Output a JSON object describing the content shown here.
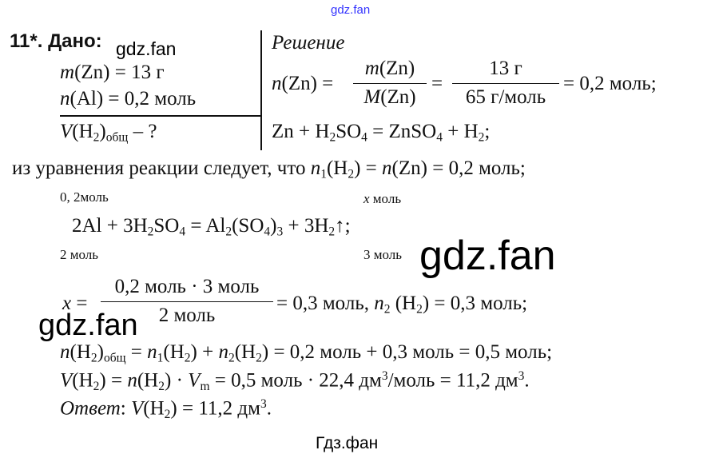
{
  "watermarks": {
    "top": "gdz.fan",
    "near_given": "gdz.fan",
    "middle": "gdz.fan",
    "left": "gdz.fan",
    "bottom": "Гдз.фан"
  },
  "colors": {
    "top_watermark": "#3333ff",
    "text": "#111111"
  },
  "problem": {
    "number": "11*.",
    "given_label": "Дано:",
    "solution_label": "Решение",
    "given": [
      [
        {
          "t": "m",
          "s": "i"
        },
        {
          "t": "(Zn) = 13 г"
        }
      ],
      [
        {
          "t": "n",
          "s": "i"
        },
        {
          "t": "(Al) = 0,2 моль"
        }
      ]
    ],
    "find": [
      {
        "t": "V",
        "s": "i"
      },
      {
        "t": "(H"
      },
      {
        "t": "2",
        "s": "sub"
      },
      {
        "t": ")"
      },
      {
        "t": "общ",
        "s": "sub"
      },
      {
        "t": " – ?"
      }
    ],
    "nzn_lhs": [
      {
        "t": "n",
        "s": "i"
      },
      {
        "t": "(Zn) ="
      }
    ],
    "nzn_frac1": {
      "num": [
        {
          "t": "m",
          "s": "i"
        },
        {
          "t": "(Zn)"
        }
      ],
      "den": [
        {
          "t": "M",
          "s": "i"
        },
        {
          "t": "(Zn)"
        }
      ]
    },
    "nzn_eq": "=",
    "nzn_frac2": {
      "num": [
        {
          "t": "13 г"
        }
      ],
      "den": [
        {
          "t": "65 г/моль"
        }
      ]
    },
    "nzn_result": "= 0,2 моль;",
    "reaction1": [
      {
        "t": "Zn + H"
      },
      {
        "t": "2",
        "s": "sub"
      },
      {
        "t": "SO"
      },
      {
        "t": "4",
        "s": "sub"
      },
      {
        "t": " = ZnSO"
      },
      {
        "t": "4",
        "s": "sub"
      },
      {
        "t": " + H"
      },
      {
        "t": "2",
        "s": "sub"
      },
      {
        "t": ";"
      }
    ],
    "from_equation": [
      {
        "t": "из уравнения реакции следует, что "
      },
      {
        "t": "n",
        "s": "i"
      },
      {
        "t": "1",
        "s": "sub"
      },
      {
        "t": "(H"
      },
      {
        "t": "2",
        "s": "sub"
      },
      {
        "t": ") = "
      },
      {
        "t": "n",
        "s": "i"
      },
      {
        "t": "(Zn) = 0,2 моль;"
      }
    ],
    "above_al": [
      {
        "t": "0, 2моль"
      }
    ],
    "above_h2": [
      {
        "t": "x",
        "s": "i"
      },
      {
        "t": " моль"
      }
    ],
    "reaction2": [
      {
        "t": "2Al + 3H"
      },
      {
        "t": "2",
        "s": "sub"
      },
      {
        "t": "SO"
      },
      {
        "t": "4",
        "s": "sub"
      },
      {
        "t": " = Al"
      },
      {
        "t": "2",
        "s": "sub"
      },
      {
        "t": "(SO"
      },
      {
        "t": "4",
        "s": "sub"
      },
      {
        "t": ")"
      },
      {
        "t": "3",
        "s": "sub"
      },
      {
        "t": " + 3H"
      },
      {
        "t": "2",
        "s": "sub"
      },
      {
        "t": "↑;"
      }
    ],
    "below_al": [
      {
        "t": "2 моль"
      }
    ],
    "below_h2": [
      {
        "t": "3 моль"
      }
    ],
    "x_lhs": [
      {
        "t": "x",
        "s": "i"
      },
      {
        "t": " ="
      }
    ],
    "x_frac": {
      "num": [
        {
          "t": "0,2 моль · 3 моль"
        }
      ],
      "den": [
        {
          "t": "2 моль"
        }
      ]
    },
    "x_result": [
      {
        "t": "= 0,3 моль,  "
      },
      {
        "t": "n",
        "s": "i"
      },
      {
        "t": "2",
        "s": "sub"
      },
      {
        "t": " (H"
      },
      {
        "t": "2",
        "s": "sub"
      },
      {
        "t": ") = 0,3 моль;"
      }
    ],
    "total_n": [
      {
        "t": "n",
        "s": "i"
      },
      {
        "t": "(H"
      },
      {
        "t": "2",
        "s": "sub"
      },
      {
        "t": ")"
      },
      {
        "t": "общ",
        "s": "sub"
      },
      {
        "t": " = "
      },
      {
        "t": "n",
        "s": "i"
      },
      {
        "t": "1",
        "s": "sub"
      },
      {
        "t": "(H"
      },
      {
        "t": "2",
        "s": "sub"
      },
      {
        "t": ") + "
      },
      {
        "t": "n",
        "s": "i"
      },
      {
        "t": "2",
        "s": "sub"
      },
      {
        "t": "(H"
      },
      {
        "t": "2",
        "s": "sub"
      },
      {
        "t": ") = 0,2 моль + 0,3 моль = 0,5 моль;"
      }
    ],
    "volume": [
      {
        "t": "V",
        "s": "i"
      },
      {
        "t": "(H"
      },
      {
        "t": "2",
        "s": "sub"
      },
      {
        "t": ") = "
      },
      {
        "t": "n",
        "s": "i"
      },
      {
        "t": "(H"
      },
      {
        "t": "2",
        "s": "sub"
      },
      {
        "t": ") · "
      },
      {
        "t": "V",
        "s": "i"
      },
      {
        "t": "m",
        "s": "sub"
      },
      {
        "t": " = 0,5 моль · 22,4 дм"
      },
      {
        "t": "3",
        "s": "sup"
      },
      {
        "t": "/моль = 11,2 дм"
      },
      {
        "t": "3",
        "s": "sup"
      },
      {
        "t": "."
      }
    ],
    "answer": [
      {
        "t": "Ответ",
        "s": "i"
      },
      {
        "t": ": "
      },
      {
        "t": "V",
        "s": "i"
      },
      {
        "t": "(H"
      },
      {
        "t": "2",
        "s": "sub"
      },
      {
        "t": ") = 11,2 дм"
      },
      {
        "t": "3",
        "s": "sup"
      },
      {
        "t": "."
      }
    ]
  }
}
